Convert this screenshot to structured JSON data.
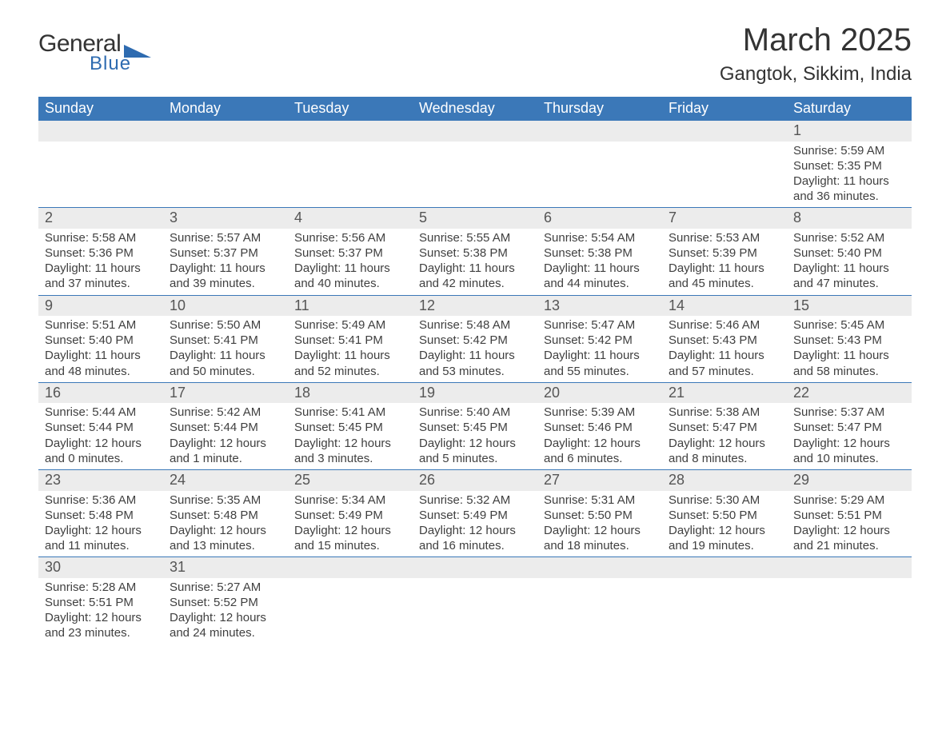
{
  "brand": {
    "text1": "General",
    "text2": "Blue",
    "shape_color": "#2e6bb0",
    "text1_color": "#333333",
    "text2_color": "#2e6bb0"
  },
  "title": "March 2025",
  "location": "Gangtok, Sikkim, India",
  "colors": {
    "header_bg": "#3b78b8",
    "header_text": "#ffffff",
    "daynum_bg": "#ececec",
    "cell_border": "#3b78b8",
    "body_text": "#404040"
  },
  "typography": {
    "title_fontsize": 40,
    "location_fontsize": 24,
    "dayheader_fontsize": 18,
    "daynum_fontsize": 18,
    "cell_fontsize": 15
  },
  "day_headers": [
    "Sunday",
    "Monday",
    "Tuesday",
    "Wednesday",
    "Thursday",
    "Friday",
    "Saturday"
  ],
  "weeks": [
    [
      null,
      null,
      null,
      null,
      null,
      null,
      {
        "n": "1",
        "sr": "Sunrise: 5:59 AM",
        "ss": "Sunset: 5:35 PM",
        "d1": "Daylight: 11 hours",
        "d2": "and 36 minutes."
      }
    ],
    [
      {
        "n": "2",
        "sr": "Sunrise: 5:58 AM",
        "ss": "Sunset: 5:36 PM",
        "d1": "Daylight: 11 hours",
        "d2": "and 37 minutes."
      },
      {
        "n": "3",
        "sr": "Sunrise: 5:57 AM",
        "ss": "Sunset: 5:37 PM",
        "d1": "Daylight: 11 hours",
        "d2": "and 39 minutes."
      },
      {
        "n": "4",
        "sr": "Sunrise: 5:56 AM",
        "ss": "Sunset: 5:37 PM",
        "d1": "Daylight: 11 hours",
        "d2": "and 40 minutes."
      },
      {
        "n": "5",
        "sr": "Sunrise: 5:55 AM",
        "ss": "Sunset: 5:38 PM",
        "d1": "Daylight: 11 hours",
        "d2": "and 42 minutes."
      },
      {
        "n": "6",
        "sr": "Sunrise: 5:54 AM",
        "ss": "Sunset: 5:38 PM",
        "d1": "Daylight: 11 hours",
        "d2": "and 44 minutes."
      },
      {
        "n": "7",
        "sr": "Sunrise: 5:53 AM",
        "ss": "Sunset: 5:39 PM",
        "d1": "Daylight: 11 hours",
        "d2": "and 45 minutes."
      },
      {
        "n": "8",
        "sr": "Sunrise: 5:52 AM",
        "ss": "Sunset: 5:40 PM",
        "d1": "Daylight: 11 hours",
        "d2": "and 47 minutes."
      }
    ],
    [
      {
        "n": "9",
        "sr": "Sunrise: 5:51 AM",
        "ss": "Sunset: 5:40 PM",
        "d1": "Daylight: 11 hours",
        "d2": "and 48 minutes."
      },
      {
        "n": "10",
        "sr": "Sunrise: 5:50 AM",
        "ss": "Sunset: 5:41 PM",
        "d1": "Daylight: 11 hours",
        "d2": "and 50 minutes."
      },
      {
        "n": "11",
        "sr": "Sunrise: 5:49 AM",
        "ss": "Sunset: 5:41 PM",
        "d1": "Daylight: 11 hours",
        "d2": "and 52 minutes."
      },
      {
        "n": "12",
        "sr": "Sunrise: 5:48 AM",
        "ss": "Sunset: 5:42 PM",
        "d1": "Daylight: 11 hours",
        "d2": "and 53 minutes."
      },
      {
        "n": "13",
        "sr": "Sunrise: 5:47 AM",
        "ss": "Sunset: 5:42 PM",
        "d1": "Daylight: 11 hours",
        "d2": "and 55 minutes."
      },
      {
        "n": "14",
        "sr": "Sunrise: 5:46 AM",
        "ss": "Sunset: 5:43 PM",
        "d1": "Daylight: 11 hours",
        "d2": "and 57 minutes."
      },
      {
        "n": "15",
        "sr": "Sunrise: 5:45 AM",
        "ss": "Sunset: 5:43 PM",
        "d1": "Daylight: 11 hours",
        "d2": "and 58 minutes."
      }
    ],
    [
      {
        "n": "16",
        "sr": "Sunrise: 5:44 AM",
        "ss": "Sunset: 5:44 PM",
        "d1": "Daylight: 12 hours",
        "d2": "and 0 minutes."
      },
      {
        "n": "17",
        "sr": "Sunrise: 5:42 AM",
        "ss": "Sunset: 5:44 PM",
        "d1": "Daylight: 12 hours",
        "d2": "and 1 minute."
      },
      {
        "n": "18",
        "sr": "Sunrise: 5:41 AM",
        "ss": "Sunset: 5:45 PM",
        "d1": "Daylight: 12 hours",
        "d2": "and 3 minutes."
      },
      {
        "n": "19",
        "sr": "Sunrise: 5:40 AM",
        "ss": "Sunset: 5:45 PM",
        "d1": "Daylight: 12 hours",
        "d2": "and 5 minutes."
      },
      {
        "n": "20",
        "sr": "Sunrise: 5:39 AM",
        "ss": "Sunset: 5:46 PM",
        "d1": "Daylight: 12 hours",
        "d2": "and 6 minutes."
      },
      {
        "n": "21",
        "sr": "Sunrise: 5:38 AM",
        "ss": "Sunset: 5:47 PM",
        "d1": "Daylight: 12 hours",
        "d2": "and 8 minutes."
      },
      {
        "n": "22",
        "sr": "Sunrise: 5:37 AM",
        "ss": "Sunset: 5:47 PM",
        "d1": "Daylight: 12 hours",
        "d2": "and 10 minutes."
      }
    ],
    [
      {
        "n": "23",
        "sr": "Sunrise: 5:36 AM",
        "ss": "Sunset: 5:48 PM",
        "d1": "Daylight: 12 hours",
        "d2": "and 11 minutes."
      },
      {
        "n": "24",
        "sr": "Sunrise: 5:35 AM",
        "ss": "Sunset: 5:48 PM",
        "d1": "Daylight: 12 hours",
        "d2": "and 13 minutes."
      },
      {
        "n": "25",
        "sr": "Sunrise: 5:34 AM",
        "ss": "Sunset: 5:49 PM",
        "d1": "Daylight: 12 hours",
        "d2": "and 15 minutes."
      },
      {
        "n": "26",
        "sr": "Sunrise: 5:32 AM",
        "ss": "Sunset: 5:49 PM",
        "d1": "Daylight: 12 hours",
        "d2": "and 16 minutes."
      },
      {
        "n": "27",
        "sr": "Sunrise: 5:31 AM",
        "ss": "Sunset: 5:50 PM",
        "d1": "Daylight: 12 hours",
        "d2": "and 18 minutes."
      },
      {
        "n": "28",
        "sr": "Sunrise: 5:30 AM",
        "ss": "Sunset: 5:50 PM",
        "d1": "Daylight: 12 hours",
        "d2": "and 19 minutes."
      },
      {
        "n": "29",
        "sr": "Sunrise: 5:29 AM",
        "ss": "Sunset: 5:51 PM",
        "d1": "Daylight: 12 hours",
        "d2": "and 21 minutes."
      }
    ],
    [
      {
        "n": "30",
        "sr": "Sunrise: 5:28 AM",
        "ss": "Sunset: 5:51 PM",
        "d1": "Daylight: 12 hours",
        "d2": "and 23 minutes."
      },
      {
        "n": "31",
        "sr": "Sunrise: 5:27 AM",
        "ss": "Sunset: 5:52 PM",
        "d1": "Daylight: 12 hours",
        "d2": "and 24 minutes."
      },
      null,
      null,
      null,
      null,
      null
    ]
  ]
}
